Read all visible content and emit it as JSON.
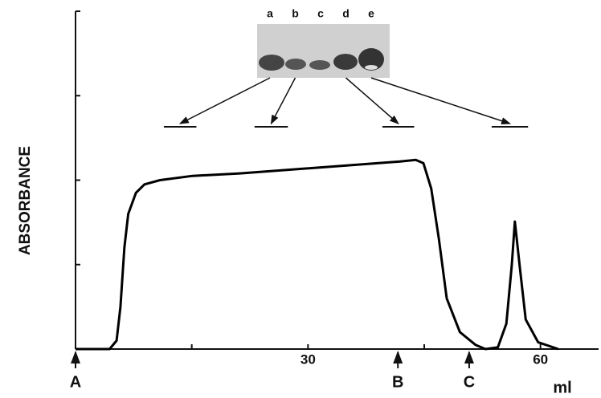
{
  "chart_data": {
    "type": "line",
    "y_label": "ABSORBANCE",
    "x_unit": "ml",
    "xlim": [
      0,
      67.5
    ],
    "ylim": [
      0,
      4
    ],
    "xticks": [
      30,
      60
    ],
    "minor_xticks": [
      15,
      45
    ],
    "minor_yticks": [
      1,
      2,
      3,
      4
    ],
    "color": "#000000",
    "x": [
      0,
      4.4,
      5.3,
      5.8,
      6.3,
      6.8,
      7.8,
      8.9,
      10.9,
      15.1,
      21.2,
      31.5,
      41.9,
      43.9,
      44.9,
      45.9,
      46.9,
      47.9,
      49.6,
      51.6,
      52.9,
      54.5,
      55.6,
      56.3,
      56.7,
      57.3,
      58.1,
      59.7,
      62.3
    ],
    "values": [
      0,
      0,
      0.1,
      0.5,
      1.2,
      1.6,
      1.85,
      1.95,
      2.0,
      2.05,
      2.08,
      2.15,
      2.22,
      2.24,
      2.2,
      1.9,
      1.3,
      0.6,
      0.2,
      0.05,
      0,
      0.02,
      0.3,
      1.0,
      1.51,
      1.0,
      0.35,
      0.08,
      0
    ],
    "markers": [
      {
        "label": "A",
        "x": 0
      },
      {
        "label": "B",
        "x": 41.6
      },
      {
        "label": "C",
        "x": 50.8
      }
    ],
    "gel_lanes": [
      "a",
      "b",
      "c",
      "d",
      "e"
    ],
    "fractions": [
      {
        "lane": "a",
        "range": [
          11.4,
          15.6
        ]
      },
      {
        "lane": "b",
        "range": [
          23.1,
          27.4
        ]
      },
      {
        "lane": "d",
        "range": [
          39.6,
          43.7
        ]
      },
      {
        "lane": "e",
        "range": [
          53.7,
          58.4
        ]
      }
    ]
  }
}
